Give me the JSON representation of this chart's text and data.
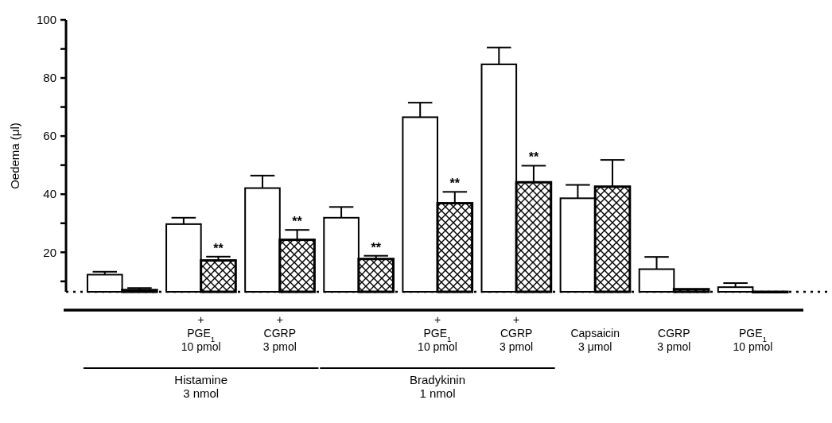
{
  "chart_data": {
    "type": "bar",
    "ylabel": "Oedema (μl)",
    "categories": [
      null,
      "+\nPGE$_{1}$\n10 pmol",
      "+\nCGRP\n3 pmol",
      null,
      "+\nPGE$_{1}$\n10 pmol",
      "+\nCGRP\n3 pmol",
      "Capsaicin\n3 μmol",
      "CGRP\n3 pmol",
      "PGE$_{1}$\n10 pmol"
    ],
    "series": [
      {
        "color": "#ffffff",
        "values": [
          12.3,
          29.7,
          42.1,
          31.9,
          66.5,
          84.7,
          38.6,
          14.2,
          8.0
        ],
        "errors": [
          1.0,
          2.2,
          4.3,
          3.7,
          5.0,
          5.8,
          4.6,
          4.2,
          1.4
        ]
      },
      {
        "color": "#000000",
        "values": [
          7.0,
          17.2,
          24.3,
          17.7,
          36.9,
          44.1,
          42.6,
          7.3,
          6.4
        ],
        "errors": [
          0.7,
          1.3,
          3.4,
          1.1,
          3.9,
          5.7,
          9.2,
          null,
          null
        ],
        "value_labels": [
          null,
          "**",
          "**",
          "**",
          "**",
          "**",
          null,
          null,
          null
        ]
      }
    ],
    "ylim": [
      6.4,
      100
    ],
    "yticks": [
      {
        "value": 10,
        "label": null
      },
      20,
      {
        "value": 30,
        "label": null
      },
      40,
      {
        "value": 50,
        "label": null
      },
      60,
      {
        "value": 70,
        "label": null
      },
      80,
      {
        "value": 90,
        "label": null
      },
      100
    ],
    "ref_lines": [
      {
        "axis": "y",
        "value": 6.4,
        "line_style": "dotted"
      }
    ],
    "annotations": [
      "Histamine\n3 nmol",
      "Bradykinin\n1 nmol"
    ],
    "grid": false
  }
}
